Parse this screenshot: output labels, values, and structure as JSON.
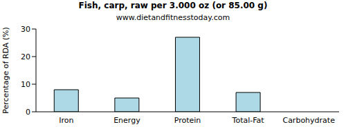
{
  "chart_data": {
    "type": "bar",
    "title": "Fish, carp, raw per 3.000 oz (or 85.00 g)",
    "subtitle": "www.dietandfitnesstoday.com",
    "y_label": "Percentage of RDA (%)",
    "categories": [
      "Iron",
      "Energy",
      "Protein",
      "Total-Fat",
      "Carbohydrate"
    ],
    "values": [
      8,
      5,
      27,
      7,
      0
    ],
    "color": "#add8e6",
    "ylim": [
      0,
      30
    ],
    "yticks": [
      0,
      10,
      20,
      30
    ],
    "grid": false
  }
}
